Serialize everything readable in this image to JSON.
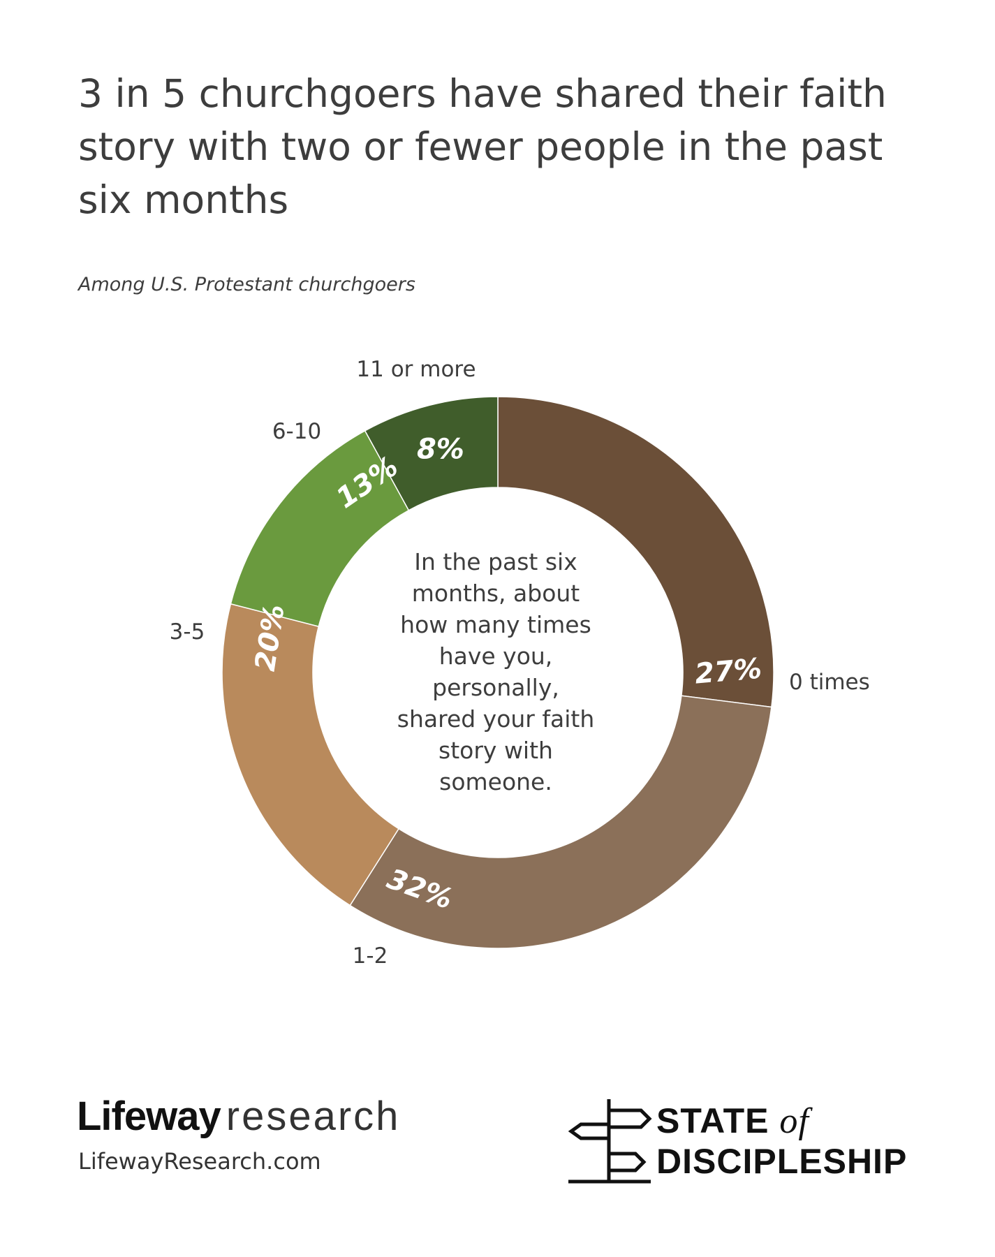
{
  "header": {
    "title": "3 in 5 churchgoers have shared their faith story with two or fewer people in the past six months",
    "subtitle": "Among U.S. Protestant churchgoers"
  },
  "chart_data": {
    "type": "pie",
    "variant": "donut",
    "center_text": "In the past six months, about how many times have you, personally, shared your faith story with someone.",
    "categories": [
      "0 times",
      "1-2",
      "3-5",
      "6-10",
      "11 or more"
    ],
    "values": [
      27,
      32,
      20,
      13,
      8
    ],
    "value_labels": [
      "27%",
      "32%",
      "20%",
      "13%",
      "8%"
    ],
    "colors": [
      "#6b4f38",
      "#8b7059",
      "#b98a5c",
      "#6a9a3e",
      "#405d2b"
    ]
  },
  "footer": {
    "brand_bold": "Lifeway",
    "brand_light": "research",
    "url": "LifewayResearch.com",
    "logo_line1": "STATE",
    "logo_of": "of",
    "logo_line2": "DISCIPLESHIP"
  }
}
